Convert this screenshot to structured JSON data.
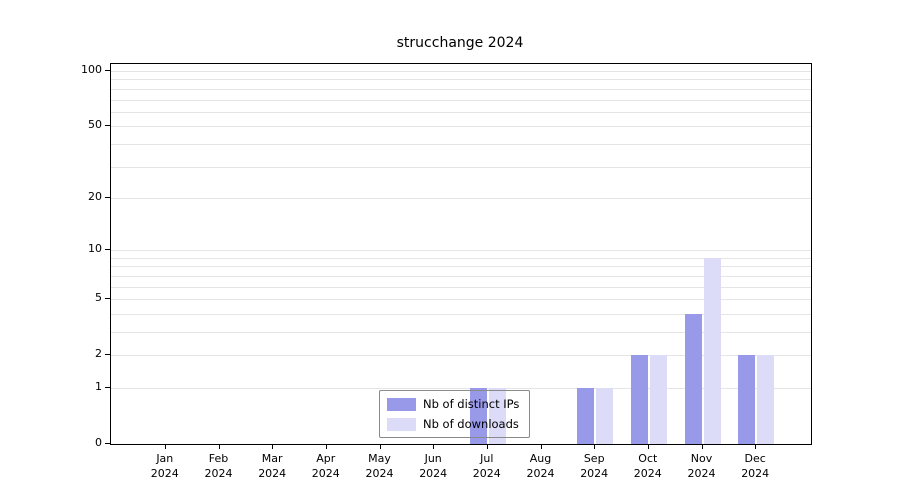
{
  "title": "strucchange 2024",
  "chart_data": {
    "type": "bar",
    "title": "strucchange 2024",
    "months": [
      "Jan",
      "Feb",
      "Mar",
      "Apr",
      "May",
      "Jun",
      "Jul",
      "Aug",
      "Sep",
      "Oct",
      "Nov",
      "Dec"
    ],
    "year": "2024",
    "categories": [
      "Jan 2024",
      "Feb 2024",
      "Mar 2024",
      "Apr 2024",
      "May 2024",
      "Jun 2024",
      "Jul 2024",
      "Aug 2024",
      "Sep 2024",
      "Oct 2024",
      "Nov 2024",
      "Dec 2024"
    ],
    "series": [
      {
        "name": "Nb of distinct IPs",
        "color": "#9999ea",
        "values": [
          0,
          0,
          0,
          0,
          0,
          0,
          1,
          0,
          1,
          2,
          4,
          2
        ]
      },
      {
        "name": "Nb of downloads",
        "color": "#dcdcf8",
        "values": [
          0,
          0,
          0,
          0,
          0,
          0,
          1,
          0,
          1,
          2,
          9,
          2
        ]
      }
    ],
    "yticks": [
      0,
      1,
      2,
      5,
      10,
      20,
      50,
      100
    ],
    "minor_gridlines": [
      1,
      2,
      3,
      4,
      5,
      6,
      7,
      8,
      9,
      10,
      20,
      30,
      40,
      50,
      60,
      70,
      80,
      90,
      100
    ],
    "ylim": [
      0,
      100
    ],
    "yscale": "log1p",
    "xlabel": "",
    "ylabel": "",
    "grid": "horizontal-minor",
    "legend_position": "bottom-center"
  }
}
